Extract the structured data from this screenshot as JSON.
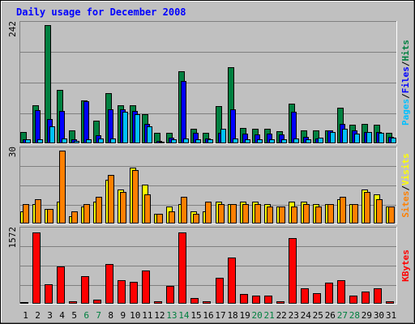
{
  "title": "Daily usage for December 2008",
  "colors": {
    "background": "#c0c0c0",
    "title": "#0000ff",
    "hits": "#008040",
    "files": "#0000ff",
    "pages": "#00c0ff",
    "visits": "#ffff00",
    "sites": "#ff8000",
    "kbytes": "#ff0000",
    "weekend_day": "#008040",
    "weekday": "#000000"
  },
  "chart_data": [
    {
      "type": "bar",
      "name": "hits-files-pages",
      "ymax_label": "242",
      "ylim": [
        0,
        242
      ],
      "legend": [
        {
          "label": "Pages",
          "color": "#00c0ff"
        },
        {
          "label": "/",
          "color": "#000000"
        },
        {
          "label": "Files",
          "color": "#0000ff"
        },
        {
          "label": "/",
          "color": "#000000"
        },
        {
          "label": "Hits",
          "color": "#008040"
        }
      ],
      "categories": [
        "1",
        "2",
        "3",
        "4",
        "5",
        "6",
        "7",
        "8",
        "9",
        "10",
        "11",
        "12",
        "13",
        "14",
        "15",
        "16",
        "17",
        "18",
        "19",
        "20",
        "21",
        "22",
        "23",
        "24",
        "25",
        "26",
        "27",
        "28",
        "29",
        "30",
        "31"
      ],
      "series": [
        {
          "name": "Hits",
          "color": "#008040",
          "values": [
            24,
            78,
            242,
            110,
            27,
            88,
            47,
            102,
            78,
            78,
            60,
            22,
            22,
            148,
            30,
            22,
            76,
            155,
            32,
            30,
            30,
            25,
            81,
            27,
            27,
            27,
            73,
            38,
            40,
            38,
            22
          ]
        },
        {
          "name": "Files",
          "color": "#0000ff",
          "values": [
            8,
            68,
            50,
            66,
            8,
            86,
            16,
            70,
            70,
            67,
            40,
            5,
            12,
            128,
            22,
            10,
            22,
            70,
            20,
            18,
            20,
            18,
            64,
            13,
            10,
            26,
            40,
            26,
            24,
            24,
            13
          ]
        },
        {
          "name": "Pages",
          "color": "#00c0ff",
          "values": [
            8,
            8,
            34,
            10,
            5,
            8,
            10,
            10,
            65,
            60,
            35,
            3,
            8,
            10,
            8,
            8,
            30,
            10,
            8,
            8,
            8,
            8,
            10,
            8,
            12,
            24,
            30,
            20,
            24,
            22,
            12
          ]
        }
      ]
    },
    {
      "type": "bar",
      "name": "visits-sites",
      "ymax_label": "30",
      "ylim": [
        0,
        30
      ],
      "legend": [
        {
          "label": "Sites",
          "color": "#ff8000"
        },
        {
          "label": "/",
          "color": "#000000"
        },
        {
          "label": "Visits",
          "color": "#ffff00"
        }
      ],
      "categories": [
        "1",
        "2",
        "3",
        "4",
        "5",
        "6",
        "7",
        "8",
        "9",
        "10",
        "11",
        "12",
        "13",
        "14",
        "15",
        "16",
        "17",
        "18",
        "19",
        "20",
        "21",
        "22",
        "23",
        "24",
        "25",
        "26",
        "27",
        "28",
        "29",
        "30",
        "31"
      ],
      "series": [
        {
          "name": "Visits",
          "color": "#ffff00",
          "values": [
            5,
            8,
            6,
            9,
            3,
            7,
            9,
            18,
            14,
            23,
            16,
            4,
            7,
            8,
            5,
            5,
            9,
            8,
            9,
            9,
            8,
            7,
            9,
            9,
            8,
            8,
            10,
            8,
            14,
            12,
            7
          ]
        },
        {
          "name": "Sites",
          "color": "#ff8000",
          "values": [
            8,
            10,
            6,
            30,
            5,
            8,
            11,
            20,
            13,
            22,
            12,
            4,
            5,
            11,
            4,
            9,
            8,
            8,
            8,
            8,
            7,
            7,
            7,
            8,
            7,
            8,
            11,
            8,
            13,
            10,
            7
          ]
        }
      ]
    },
    {
      "type": "bar",
      "name": "kbytes",
      "ymax_label": "1572",
      "ylim": [
        0,
        1572
      ],
      "legend": [
        {
          "label": "KBytes",
          "color": "#ff0000"
        }
      ],
      "categories": [
        "1",
        "2",
        "3",
        "4",
        "5",
        "6",
        "7",
        "8",
        "9",
        "10",
        "11",
        "12",
        "13",
        "14",
        "15",
        "16",
        "17",
        "18",
        "19",
        "20",
        "21",
        "22",
        "23",
        "24",
        "25",
        "26",
        "27",
        "28",
        "29",
        "30",
        "31"
      ],
      "series": [
        {
          "name": "KBytes",
          "color": "#ff0000",
          "values": [
            40,
            1540,
            420,
            800,
            60,
            600,
            90,
            850,
            500,
            480,
            710,
            50,
            380,
            1540,
            120,
            60,
            560,
            990,
            210,
            170,
            170,
            60,
            1420,
            330,
            220,
            450,
            500,
            170,
            260,
            330,
            50
          ]
        }
      ]
    }
  ],
  "x_axis": {
    "labels": [
      "1",
      "2",
      "3",
      "4",
      "5",
      "6",
      "7",
      "8",
      "9",
      "10",
      "11",
      "12",
      "13",
      "14",
      "15",
      "16",
      "17",
      "18",
      "19",
      "20",
      "21",
      "22",
      "23",
      "24",
      "25",
      "26",
      "27",
      "28",
      "29",
      "30",
      "31"
    ],
    "weekend_days": [
      "6",
      "7",
      "13",
      "14",
      "20",
      "21",
      "27",
      "28"
    ]
  }
}
